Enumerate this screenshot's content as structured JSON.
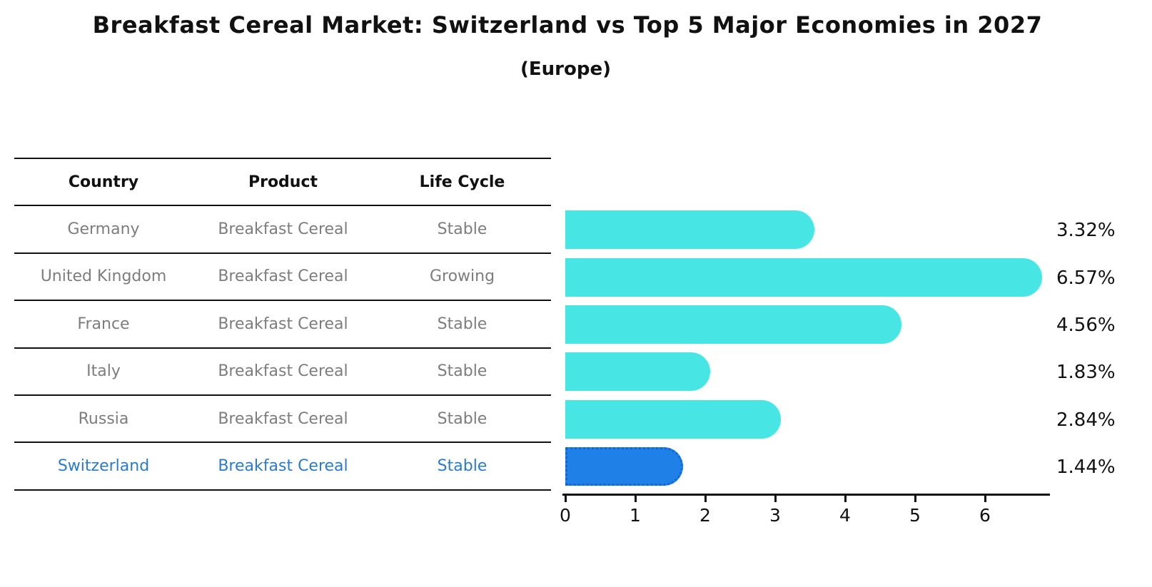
{
  "chart_data": {
    "type": "bar",
    "orientation": "horizontal",
    "title": "Breakfast Cereal Market: Switzerland vs Top 5 Major Economies in 2027",
    "subtitle": "(Europe)",
    "categories": [
      "Germany",
      "United Kingdom",
      "France",
      "Italy",
      "Russia",
      "Switzerland"
    ],
    "values": [
      3.32,
      6.57,
      4.56,
      1.83,
      2.84,
      1.44
    ],
    "value_labels": [
      "3.32%",
      "6.57%",
      "4.56%",
      "1.83%",
      "2.84%",
      "1.44%"
    ],
    "x_ticks": [
      0,
      1,
      2,
      3,
      4,
      5,
      6
    ],
    "xlim": [
      0,
      6.92
    ],
    "grid": false,
    "legend": "none",
    "bar_color": "#47e5e3",
    "highlight_index": 5,
    "highlight_color": "#1f80e8",
    "highlight_border_color": "#1565d0"
  },
  "table": {
    "columns": [
      "Country",
      "Product",
      "Life Cycle"
    ],
    "rows": [
      {
        "country": "Germany",
        "product": "Breakfast Cereal",
        "life_cycle": "Stable",
        "highlighted": false
      },
      {
        "country": "United Kingdom",
        "product": "Breakfast Cereal",
        "life_cycle": "Growing",
        "highlighted": false
      },
      {
        "country": "France",
        "product": "Breakfast Cereal",
        "life_cycle": "Stable",
        "highlighted": false
      },
      {
        "country": "Italy",
        "product": "Breakfast Cereal",
        "life_cycle": "Stable",
        "highlighted": false
      },
      {
        "country": "Russia",
        "product": "Breakfast Cereal",
        "life_cycle": "Stable",
        "highlighted": false
      },
      {
        "country": "Switzerland",
        "product": "Breakfast Cereal",
        "life_cycle": "Stable",
        "highlighted": true
      }
    ]
  },
  "colors": {
    "text_primary": "#111111",
    "text_muted": "#7d7d7d",
    "text_highlight": "#2a7bd0",
    "rule_lines": "#111111",
    "background": "#ffffff"
  }
}
